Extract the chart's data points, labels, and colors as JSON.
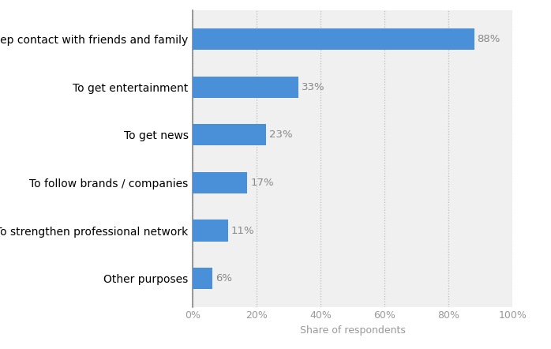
{
  "categories": [
    "Other purposes",
    "To strengthen professional network",
    "To follow brands / companies",
    "To get news",
    "To get entertainment",
    "To keep contact with friends and family"
  ],
  "values": [
    6,
    11,
    17,
    23,
    33,
    88
  ],
  "bar_color": "#4a90d9",
  "background_color": "#ffffff",
  "plot_bg_color": "#f0f0f0",
  "label_color": "#999999",
  "value_label_color": "#888888",
  "xlabel": "Share of respondents",
  "xlim": [
    0,
    100
  ],
  "xticks": [
    0,
    20,
    40,
    60,
    80,
    100
  ],
  "xtick_labels": [
    "0%",
    "20%",
    "40%",
    "60%",
    "80%",
    "100%"
  ],
  "bar_height": 0.45,
  "label_fontsize": 9.5,
  "value_fontsize": 9.5,
  "xlabel_fontsize": 9,
  "xtick_fontsize": 9
}
